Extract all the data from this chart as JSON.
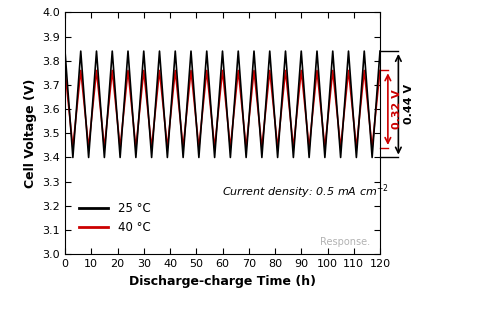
{
  "title": "",
  "xlabel": "Discharge-charge Time (h)",
  "ylabel": "Cell Voltage (V)",
  "xlim": [
    0,
    120
  ],
  "ylim": [
    3.0,
    4.0
  ],
  "xticks": [
    0,
    10,
    20,
    30,
    40,
    50,
    60,
    70,
    80,
    90,
    100,
    110,
    120
  ],
  "yticks": [
    3.0,
    3.1,
    3.2,
    3.3,
    3.4,
    3.5,
    3.6,
    3.7,
    3.8,
    3.9,
    4.0
  ],
  "n_cycles": 20,
  "cycle_duration": 6,
  "black_low": 3.4,
  "black_high": 3.84,
  "red_low": 3.44,
  "red_high": 3.76,
  "black_color": "#000000",
  "red_color": "#cc0000",
  "legend_25": "25 °C",
  "legend_40": "40 °C",
  "annotation_032": "0.32 V",
  "annotation_044": "0.44 V",
  "note_text": "Current density: 0.5 mA cm",
  "background_color": "#ffffff",
  "figsize": [
    5.0,
    3.1
  ],
  "dpi": 100
}
